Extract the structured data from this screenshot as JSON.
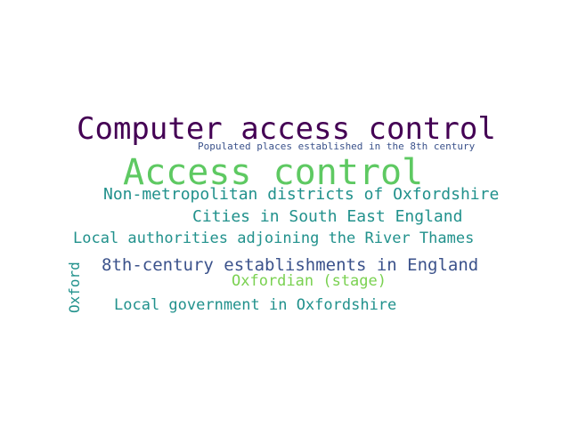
{
  "word_cloud": {
    "words": [
      {
        "text": "Computer access control",
        "color": "#440154"
      },
      {
        "text": "Populated places established in the 8th century",
        "color": "#3b528b"
      },
      {
        "text": "Access control",
        "color": "#5ec962"
      },
      {
        "text": "Non-metropolitan districts of Oxfordshire",
        "color": "#21918c"
      },
      {
        "text": "Cities in South East England",
        "color": "#21918c"
      },
      {
        "text": "Local authorities adjoining the River Thames",
        "color": "#21918c"
      },
      {
        "text": "8th-century establishments in England",
        "color": "#3b528b"
      },
      {
        "text": "Oxfordian (stage)",
        "color": "#7ad151"
      },
      {
        "text": "Local government in Oxfordshire",
        "color": "#21918c"
      },
      {
        "text": "Oxford",
        "color": "#21918c"
      }
    ]
  }
}
